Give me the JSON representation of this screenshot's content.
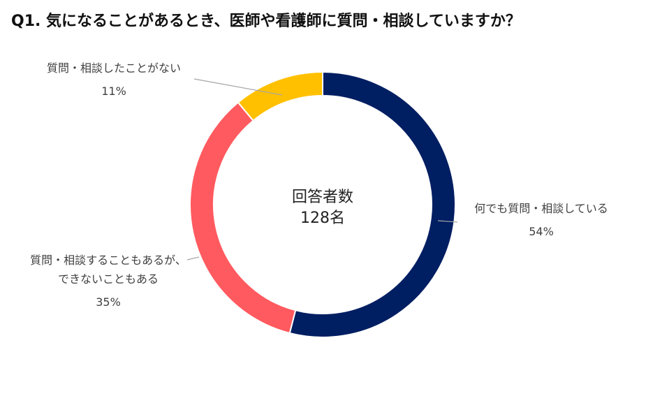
{
  "title": "Q1. 気になることがあるとき、医師や看護師に質問・相談していますか？",
  "chart_data": {
    "type": "pie",
    "variant": "donut",
    "center_label": [
      "回答者数",
      "128名"
    ],
    "slices": [
      {
        "label": [
          "何でも質問・相談している"
        ],
        "value": 54,
        "display": "54%",
        "color": "#001E62"
      },
      {
        "label": [
          "質問・相談することもあるが、",
          "できないこともある"
        ],
        "value": 35,
        "display": "35%",
        "color": "#FF5A5F"
      },
      {
        "label": [
          "質問・相談したことがない"
        ],
        "value": 11,
        "display": "11%",
        "color": "#FFC000"
      }
    ],
    "legend": "none"
  }
}
